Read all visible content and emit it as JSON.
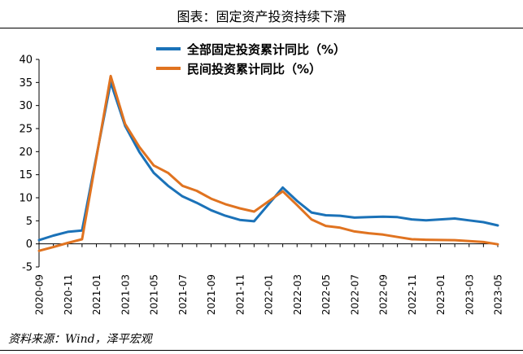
{
  "header": {
    "title": "图表：固定资产投资持续下滑"
  },
  "source": "资料来源：Wind，泽平宏观",
  "chart_data": {
    "type": "line",
    "title": "图表：固定资产投资持续下滑",
    "xlabel": "",
    "ylabel": "",
    "ylim": [
      -5,
      40
    ],
    "yticks": [
      -5,
      0,
      5,
      10,
      15,
      20,
      25,
      30,
      35,
      40
    ],
    "xticks": [
      "2020-09",
      "2020-11",
      "2021-01",
      "2021-03",
      "2021-05",
      "2021-07",
      "2021-09",
      "2021-11",
      "2022-01",
      "2022-03",
      "2022-05",
      "2022-07",
      "2022-09",
      "2022-11",
      "2023-01",
      "2023-03",
      "2023-05"
    ],
    "grid": false,
    "legend": "top-center",
    "x": [
      "2020-09",
      "2020-10",
      "2020-11",
      "2020-12",
      "2021-01",
      "2021-02",
      "2021-03",
      "2021-04",
      "2021-05",
      "2021-06",
      "2021-07",
      "2021-08",
      "2021-09",
      "2021-10",
      "2021-11",
      "2021-12",
      "2022-01",
      "2022-02",
      "2022-03",
      "2022-04",
      "2022-05",
      "2022-06",
      "2022-07",
      "2022-08",
      "2022-09",
      "2022-10",
      "2022-11",
      "2022-12",
      "2023-01",
      "2023-02",
      "2023-03",
      "2023-04",
      "2023-05"
    ],
    "series": [
      {
        "name": "全部固定投资累计同比（%）",
        "color": "#1b72b8",
        "values": [
          0.8,
          1.8,
          2.6,
          2.9,
          null,
          35.0,
          25.6,
          19.9,
          15.4,
          12.6,
          10.3,
          8.9,
          7.3,
          6.1,
          5.2,
          4.9,
          null,
          12.2,
          9.3,
          6.8,
          6.2,
          6.1,
          5.7,
          5.8,
          5.9,
          5.8,
          5.3,
          5.1,
          null,
          5.5,
          5.1,
          4.7,
          4.0
        ]
      },
      {
        "name": "民间投资累计同比（%）",
        "color": "#e07320",
        "values": [
          -1.5,
          -0.7,
          0.2,
          1.0,
          null,
          36.4,
          26.0,
          21.0,
          17.0,
          15.4,
          12.6,
          11.5,
          9.8,
          8.6,
          7.7,
          7.0,
          null,
          11.4,
          8.4,
          5.3,
          3.9,
          3.5,
          2.7,
          2.3,
          2.0,
          1.5,
          1.0,
          0.9,
          null,
          0.8,
          0.6,
          0.4,
          -0.1
        ]
      }
    ]
  }
}
